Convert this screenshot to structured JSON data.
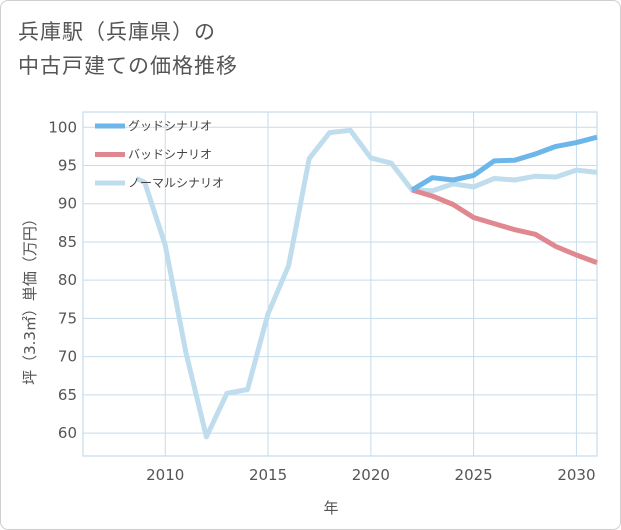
{
  "title_line1": "兵庫駅（兵庫県）の",
  "title_line2": "中古戸建ての価格推移",
  "chart_data": {
    "type": "line",
    "xlabel": "年",
    "ylabel": "坪（3.3㎡）単価（万円）",
    "xlim": [
      2006,
      2031
    ],
    "ylim": [
      57,
      102
    ],
    "xticks": [
      2010,
      2015,
      2020,
      2025,
      2030
    ],
    "yticks": [
      60,
      65,
      70,
      75,
      80,
      85,
      90,
      95,
      100
    ],
    "grid": true,
    "legend_position": "top-left",
    "series": [
      {
        "name": "グッドシナリオ",
        "color": "#6cb6ea",
        "x": [
          2022,
          2023,
          2024,
          2025,
          2026,
          2027,
          2028,
          2029,
          2030,
          2031
        ],
        "y": [
          91.8,
          93.4,
          93.1,
          93.7,
          95.6,
          95.7,
          96.5,
          97.5,
          98.0,
          98.7
        ]
      },
      {
        "name": "バッドシナリオ",
        "color": "#e0888f",
        "x": [
          2022,
          2023,
          2024,
          2025,
          2026,
          2027,
          2028,
          2029,
          2030,
          2031
        ],
        "y": [
          91.8,
          91.0,
          89.9,
          88.2,
          87.4,
          86.6,
          86.0,
          84.4,
          83.3,
          82.3
        ]
      },
      {
        "name": "ノーマルシナリオ",
        "color": "#bfdded",
        "x": [
          2008.6,
          2009,
          2010,
          2011,
          2012,
          2013,
          2014,
          2015,
          2016,
          2017,
          2018,
          2019,
          2020,
          2021,
          2022,
          2023,
          2024,
          2025,
          2026,
          2027,
          2028,
          2029,
          2030,
          2031
        ],
        "y": [
          93.3,
          92.8,
          84.6,
          70.6,
          59.5,
          65.2,
          65.7,
          75.6,
          81.9,
          95.9,
          99.3,
          99.6,
          96.0,
          95.3,
          91.8,
          91.7,
          92.6,
          92.2,
          93.3,
          93.1,
          93.6,
          93.5,
          94.4,
          94.1
        ]
      }
    ]
  }
}
